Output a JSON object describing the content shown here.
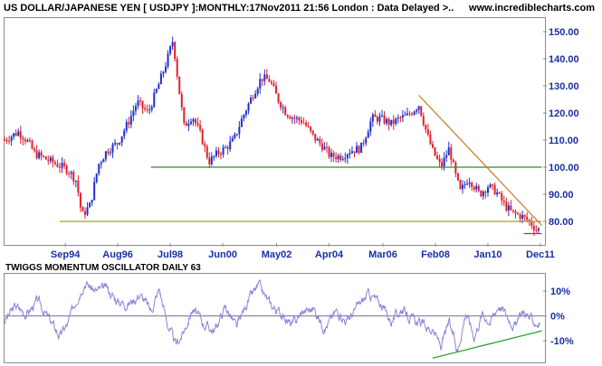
{
  "header": {
    "title": "US DOLLAR/JAPANESE YEN [ USDJPY ]:MONTHLY:17Nov2011 21:56 London : Data Delayed >..",
    "site": "www.incrediblecharts.com"
  },
  "oscillator": {
    "title": "TWIGGS MOMENTUM OSCILLATOR DAILY 63"
  },
  "colors": {
    "axis_text": "#1a2fa0",
    "up_candle": "#1f2fd0",
    "down_candle": "#e0202a",
    "support_line": "#2e8b2e",
    "baseline": "#a3a31a",
    "trend_line": "#c87a18",
    "low_line": "#e0202a",
    "oscillator_line": "#8a86d8",
    "oscillator_trend": "#2aa02a",
    "zero_line": "#707090"
  },
  "chart_data": [
    {
      "type": "line",
      "title": "US DOLLAR/JAPANESE YEN [ USDJPY ]:MONTHLY",
      "xlabel": "",
      "ylabel": "",
      "ylim": [
        72,
        155
      ],
      "xlim": [
        1992.5,
        2012.0
      ],
      "x_tick_labels": [
        "Sep94",
        "Aug96",
        "Jul98",
        "Jun00",
        "May02",
        "Apr04",
        "Mar06",
        "Feb08",
        "Jan10",
        "Dec11"
      ],
      "x_tick_positions": [
        1994.7,
        1996.6,
        1998.5,
        2000.4,
        2002.35,
        2004.25,
        2006.2,
        2008.1,
        2010.0,
        2011.9
      ],
      "y_ticks": [
        80,
        90,
        100,
        110,
        120,
        130,
        140,
        150
      ],
      "y_tick_labels": [
        "80.00",
        "90.00",
        "100.00",
        "110.00",
        "120.00",
        "130.00",
        "140.00",
        "150.00"
      ],
      "grid": false,
      "series": [
        {
          "values_x": [
            1992.5,
            1993.0,
            1993.3,
            1993.6,
            1994.0,
            1994.4,
            1994.8,
            1995.1,
            1995.3,
            1995.6,
            1995.9,
            1996.2,
            1996.6,
            1997.0,
            1997.3,
            1997.7,
            1998.1,
            1998.4,
            1998.6,
            1998.8,
            1999.0,
            1999.3,
            1999.6,
            1999.9,
            2000.2,
            2000.5,
            2000.8,
            2001.1,
            2001.5,
            2001.8,
            2002.1,
            2002.4,
            2002.7,
            2003.0,
            2003.3,
            2003.7,
            2004.0,
            2004.3,
            2004.7,
            2005.0,
            2005.4,
            2005.8,
            2006.1,
            2006.5,
            2006.8,
            2007.1,
            2007.5,
            2007.8,
            2008.0,
            2008.3,
            2008.6,
            2008.8,
            2009.0,
            2009.3,
            2009.7,
            2010.0,
            2010.3,
            2010.6,
            2010.9,
            2011.2,
            2011.5,
            2011.75,
            2011.88
          ],
          "values_y": [
            110,
            113,
            110,
            105,
            103,
            101,
            99,
            95,
            82,
            86,
            101,
            106,
            109,
            117,
            124,
            120,
            131,
            140,
            147,
            130,
            115,
            119,
            112,
            102,
            105,
            107,
            110,
            118,
            127,
            133,
            132,
            125,
            120,
            118,
            117,
            111,
            108,
            104,
            104,
            106,
            107,
            118,
            118,
            116,
            118,
            119,
            123,
            112,
            106,
            100,
            107,
            98,
            91,
            96,
            90,
            93,
            91,
            86,
            83,
            82,
            80,
            77,
            77
          ]
        }
      ],
      "annotations": {
        "support_line": {
          "x": [
            1997.8,
            2011.95
          ],
          "y": [
            100,
            100
          ]
        },
        "baseline": {
          "x": [
            1994.5,
            2011.95
          ],
          "y": [
            80,
            80
          ]
        },
        "trend_line": {
          "x": [
            2007.5,
            2011.95
          ],
          "y": [
            126.5,
            78.5
          ]
        },
        "low_line": {
          "x": [
            2011.3,
            2011.95
          ],
          "y": [
            75.5,
            75.5
          ]
        }
      }
    },
    {
      "type": "line",
      "title": "TWIGGS MOMENTUM OSCILLATOR DAILY 63",
      "xlabel": "",
      "ylabel": "",
      "ylim": [
        -18,
        17
      ],
      "xlim": [
        1992.5,
        2012.0
      ],
      "y_ticks": [
        10,
        0,
        -10
      ],
      "y_tick_labels": [
        "10%",
        "0%",
        "-10%"
      ],
      "grid": false,
      "series": [
        {
          "values_x": [
            1992.5,
            1992.9,
            1993.3,
            1993.7,
            1994.1,
            1994.5,
            1994.8,
            1995.1,
            1995.4,
            1995.8,
            1996.2,
            1996.6,
            1997.0,
            1997.4,
            1997.8,
            1998.1,
            1998.4,
            1998.7,
            1999.0,
            1999.3,
            1999.7,
            2000.1,
            2000.5,
            2000.9,
            2001.3,
            2001.7,
            2002.1,
            2002.5,
            2002.9,
            2003.3,
            2003.7,
            2004.1,
            2004.5,
            2004.9,
            2005.3,
            2005.7,
            2006.1,
            2006.5,
            2006.9,
            2007.3,
            2007.7,
            2008.0,
            2008.3,
            2008.6,
            2008.9,
            2009.2,
            2009.5,
            2009.8,
            2010.1,
            2010.4,
            2010.7,
            2011.0,
            2011.3,
            2011.6,
            2011.88
          ],
          "values_y": [
            -2,
            4,
            1,
            6,
            -1,
            -8,
            -3,
            7,
            14,
            10,
            11,
            6,
            5,
            9,
            2,
            11,
            -3,
            -12,
            -6,
            3,
            -3,
            -6,
            4,
            -5,
            6,
            12,
            5,
            1,
            -4,
            2,
            3,
            -5,
            2,
            -2,
            4,
            9,
            5,
            -2,
            3,
            -2,
            -4,
            -6,
            -12,
            -3,
            -14,
            2,
            -8,
            1,
            -2,
            5,
            0,
            -4,
            2,
            -2,
            -3
          ]
        },
        {
          "name": "",
          "values_x": [
            2008.0,
            2011.95
          ],
          "values_y": [
            -17,
            -6
          ]
        }
      ]
    }
  ]
}
